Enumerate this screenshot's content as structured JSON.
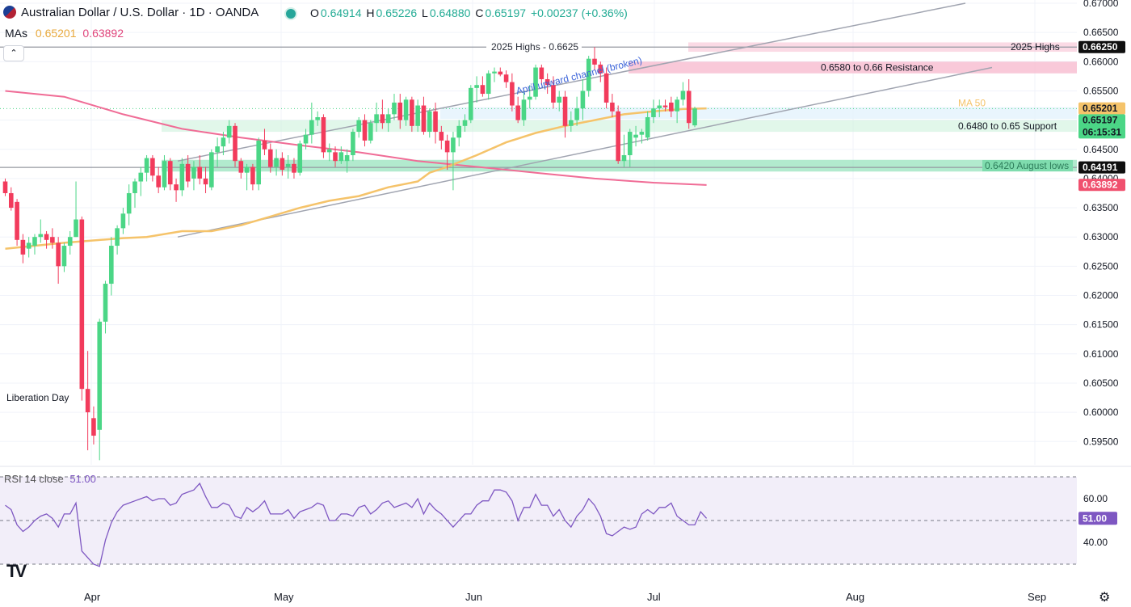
{
  "header": {
    "title": "Australian Dollar / U.S. Dollar · 1D · OANDA",
    "o_label": "O",
    "o_value": "0.64914",
    "h_label": "H",
    "h_value": "0.65226",
    "l_label": "L",
    "l_value": "0.64880",
    "c_label": "C",
    "c_value": "0.65197",
    "change": "+0.00237 (+0.36%)",
    "mas_label": "MAs",
    "ma50_value": "0.65201",
    "ma200_value": "0.63892",
    "collapse_icon": "chevron-up-icon"
  },
  "colors": {
    "up": "#4bd686",
    "down": "#f23b5c",
    "ma50": "#f5c36a",
    "ma200": "#f06c96",
    "rsi": "#7e57c2",
    "resistance_zone": "#f8bbd0",
    "support_zone": "#c8f0d8",
    "august_zone": "#7fdcae",
    "channel": "#a0a4b0"
  },
  "price_axis": {
    "ticks": [
      "0.67000",
      "0.66500",
      "0.66000",
      "0.65500",
      "0.65000",
      "0.64500",
      "0.64000",
      "0.63500",
      "0.63000",
      "0.62500",
      "0.62000",
      "0.61500",
      "0.61000",
      "0.60500",
      "0.60000",
      "0.59500"
    ],
    "tags": {
      "highs_2025": "0.66250",
      "ma50": "0.65201",
      "last": "0.65197",
      "countdown": "06:15:31",
      "august_lows": "0.64191",
      "ma200": "0.63892"
    }
  },
  "annotations": {
    "highs_line": "2025 Highs - 0.6625",
    "highs_right": "2025 Highs",
    "resistance": "0.6580 to 0.66 Resistance",
    "support": "0.6480 to 0.65 Support",
    "channel": "April upward channel (broken)",
    "august_lows": "0.6420 August lows",
    "ma50_label": "MA 50",
    "liberation_day": "Liberation Day"
  },
  "time_axis": {
    "labels": [
      "Apr",
      "May",
      "Jun",
      "Jul",
      "Aug",
      "Sep"
    ]
  },
  "rsi_panel": {
    "label": "RSI 14 close",
    "value": "51.00",
    "ticks": [
      "60.00",
      "40.00"
    ],
    "tag": "51.00"
  },
  "chart_data": {
    "type": "candlestick",
    "title": "Australian Dollar / U.S. Dollar · 1D · OANDA",
    "x_labels": [
      "Apr",
      "May",
      "Jun",
      "Jul",
      "Aug",
      "Sep"
    ],
    "ylim": [
      0.592,
      0.6705
    ],
    "candles": [
      [
        0.6395,
        0.64,
        0.637,
        0.6375
      ],
      [
        0.6375,
        0.6385,
        0.6345,
        0.635
      ],
      [
        0.636,
        0.6365,
        0.6285,
        0.6295
      ],
      [
        0.6295,
        0.6305,
        0.6255,
        0.627
      ],
      [
        0.628,
        0.63,
        0.6265,
        0.629
      ],
      [
        0.6285,
        0.6305,
        0.627,
        0.63
      ],
      [
        0.63,
        0.633,
        0.629,
        0.6305
      ],
      [
        0.6305,
        0.631,
        0.628,
        0.6295
      ],
      [
        0.63,
        0.6315,
        0.628,
        0.629
      ],
      [
        0.629,
        0.63,
        0.622,
        0.625
      ],
      [
        0.625,
        0.629,
        0.624,
        0.6285
      ],
      [
        0.6285,
        0.631,
        0.627,
        0.63
      ],
      [
        0.63,
        0.6395,
        0.63,
        0.633
      ],
      [
        0.633,
        0.6335,
        0.602,
        0.604
      ],
      [
        0.604,
        0.6105,
        0.5935,
        0.6
      ],
      [
        0.599,
        0.601,
        0.5945,
        0.596
      ],
      [
        0.597,
        0.616,
        0.5918,
        0.6155
      ],
      [
        0.6155,
        0.6225,
        0.6135,
        0.622
      ],
      [
        0.622,
        0.63,
        0.62,
        0.6285
      ],
      [
        0.6285,
        0.632,
        0.627,
        0.6315
      ],
      [
        0.6315,
        0.635,
        0.6305,
        0.634
      ],
      [
        0.634,
        0.639,
        0.632,
        0.6375
      ],
      [
        0.6375,
        0.64,
        0.635,
        0.6395
      ],
      [
        0.6395,
        0.642,
        0.637,
        0.641
      ],
      [
        0.641,
        0.644,
        0.6395,
        0.6435
      ],
      [
        0.6435,
        0.644,
        0.6395,
        0.6405
      ],
      [
        0.6405,
        0.642,
        0.6375,
        0.6385
      ],
      [
        0.6385,
        0.644,
        0.638,
        0.643
      ],
      [
        0.643,
        0.6435,
        0.638,
        0.639
      ],
      [
        0.639,
        0.64,
        0.636,
        0.638
      ],
      [
        0.638,
        0.6435,
        0.637,
        0.6425
      ],
      [
        0.6425,
        0.644,
        0.6385,
        0.6395
      ],
      [
        0.64,
        0.643,
        0.638,
        0.642
      ],
      [
        0.642,
        0.644,
        0.639,
        0.64
      ],
      [
        0.64,
        0.642,
        0.6375,
        0.639
      ],
      [
        0.6385,
        0.645,
        0.638,
        0.6445
      ],
      [
        0.6445,
        0.647,
        0.642,
        0.6455
      ],
      [
        0.6455,
        0.648,
        0.644,
        0.647
      ],
      [
        0.647,
        0.65,
        0.646,
        0.649
      ],
      [
        0.649,
        0.6495,
        0.642,
        0.643
      ],
      [
        0.643,
        0.6435,
        0.64,
        0.641
      ],
      [
        0.641,
        0.6425,
        0.638,
        0.642
      ],
      [
        0.642,
        0.6425,
        0.638,
        0.639
      ],
      [
        0.639,
        0.647,
        0.638,
        0.6465
      ],
      [
        0.6465,
        0.6485,
        0.644,
        0.645
      ],
      [
        0.645,
        0.646,
        0.641,
        0.642
      ],
      [
        0.642,
        0.645,
        0.6405,
        0.6435
      ],
      [
        0.6435,
        0.6445,
        0.6405,
        0.6415
      ],
      [
        0.642,
        0.644,
        0.64,
        0.6425
      ],
      [
        0.6425,
        0.6435,
        0.64,
        0.641
      ],
      [
        0.641,
        0.6465,
        0.6405,
        0.646
      ],
      [
        0.646,
        0.6485,
        0.645,
        0.6475
      ],
      [
        0.6475,
        0.653,
        0.646,
        0.65
      ],
      [
        0.65,
        0.6515,
        0.649,
        0.6505
      ],
      [
        0.6505,
        0.651,
        0.6435,
        0.6445
      ],
      [
        0.6445,
        0.646,
        0.643,
        0.645
      ],
      [
        0.6445,
        0.6455,
        0.642,
        0.643
      ],
      [
        0.643,
        0.6455,
        0.6425,
        0.6445
      ],
      [
        0.643,
        0.645,
        0.641,
        0.644
      ],
      [
        0.644,
        0.6485,
        0.643,
        0.648
      ],
      [
        0.648,
        0.6505,
        0.647,
        0.65
      ],
      [
        0.65,
        0.651,
        0.6455,
        0.6465
      ],
      [
        0.6465,
        0.65,
        0.646,
        0.6495
      ],
      [
        0.6495,
        0.653,
        0.648,
        0.651
      ],
      [
        0.651,
        0.6535,
        0.6485,
        0.6495
      ],
      [
        0.6495,
        0.652,
        0.648,
        0.651
      ],
      [
        0.651,
        0.6545,
        0.65,
        0.653
      ],
      [
        0.653,
        0.6545,
        0.6485,
        0.65
      ],
      [
        0.65,
        0.654,
        0.649,
        0.6535
      ],
      [
        0.6535,
        0.654,
        0.648,
        0.649
      ],
      [
        0.649,
        0.6535,
        0.648,
        0.6525
      ],
      [
        0.6525,
        0.654,
        0.6475,
        0.648
      ],
      [
        0.648,
        0.652,
        0.647,
        0.6515
      ],
      [
        0.6515,
        0.653,
        0.646,
        0.648
      ],
      [
        0.648,
        0.649,
        0.645,
        0.6465
      ],
      [
        0.6465,
        0.6475,
        0.6415,
        0.6445
      ],
      [
        0.6445,
        0.648,
        0.638,
        0.647
      ],
      [
        0.647,
        0.65,
        0.6455,
        0.649
      ],
      [
        0.649,
        0.651,
        0.648,
        0.65
      ],
      [
        0.65,
        0.656,
        0.6495,
        0.6555
      ],
      [
        0.6555,
        0.6575,
        0.653,
        0.656
      ],
      [
        0.656,
        0.6575,
        0.654,
        0.6545
      ],
      [
        0.6545,
        0.6585,
        0.6535,
        0.658
      ],
      [
        0.658,
        0.659,
        0.6565,
        0.6583
      ],
      [
        0.6583,
        0.659,
        0.6575,
        0.6578
      ],
      [
        0.6578,
        0.6585,
        0.6555,
        0.6565
      ],
      [
        0.6565,
        0.658,
        0.6515,
        0.6525
      ],
      [
        0.6525,
        0.654,
        0.6495,
        0.65
      ],
      [
        0.65,
        0.655,
        0.649,
        0.6535
      ],
      [
        0.6535,
        0.656,
        0.652,
        0.654
      ],
      [
        0.654,
        0.6595,
        0.6535,
        0.659
      ],
      [
        0.659,
        0.6595,
        0.656,
        0.657
      ],
      [
        0.657,
        0.658,
        0.6545,
        0.656
      ],
      [
        0.656,
        0.6575,
        0.652,
        0.653
      ],
      [
        0.653,
        0.655,
        0.6515,
        0.654
      ],
      [
        0.654,
        0.655,
        0.647,
        0.649
      ],
      [
        0.649,
        0.6515,
        0.648,
        0.65
      ],
      [
        0.65,
        0.654,
        0.649,
        0.652
      ],
      [
        0.652,
        0.657,
        0.65,
        0.655
      ],
      [
        0.655,
        0.661,
        0.654,
        0.6605
      ],
      [
        0.6605,
        0.6625,
        0.6585,
        0.6595
      ],
      [
        0.6595,
        0.66,
        0.6565,
        0.658
      ],
      [
        0.658,
        0.659,
        0.652,
        0.653
      ],
      [
        0.653,
        0.6545,
        0.6505,
        0.6515
      ],
      [
        0.6515,
        0.6525,
        0.6425,
        0.643
      ],
      [
        0.643,
        0.6475,
        0.642,
        0.644
      ],
      [
        0.644,
        0.6485,
        0.642,
        0.648
      ],
      [
        0.647,
        0.649,
        0.6455,
        0.6475
      ],
      [
        0.6475,
        0.6485,
        0.646,
        0.648
      ],
      [
        0.647,
        0.6515,
        0.6465,
        0.6505
      ],
      [
        0.6505,
        0.6535,
        0.6495,
        0.652
      ],
      [
        0.652,
        0.6535,
        0.6505,
        0.6525
      ],
      [
        0.6525,
        0.6535,
        0.6515,
        0.6522
      ],
      [
        0.653,
        0.654,
        0.6505,
        0.6515
      ],
      [
        0.6515,
        0.654,
        0.6495,
        0.6535
      ],
      [
        0.6535,
        0.6565,
        0.6525,
        0.655
      ],
      [
        0.655,
        0.657,
        0.6485,
        0.6495
      ],
      [
        0.6491,
        0.6523,
        0.6488,
        0.652
      ]
    ],
    "ma50": [
      [
        0,
        0.628
      ],
      [
        10,
        0.629
      ],
      [
        20,
        0.6298
      ],
      [
        24,
        0.63
      ],
      [
        30,
        0.631
      ],
      [
        35,
        0.631
      ],
      [
        40,
        0.632
      ],
      [
        45,
        0.6335
      ],
      [
        50,
        0.635
      ],
      [
        55,
        0.6362
      ],
      [
        60,
        0.637
      ],
      [
        65,
        0.6385
      ],
      [
        70,
        0.6395
      ],
      [
        72,
        0.641
      ],
      [
        75,
        0.642
      ],
      [
        80,
        0.644
      ],
      [
        85,
        0.6462
      ],
      [
        90,
        0.6478
      ],
      [
        95,
        0.649
      ],
      [
        100,
        0.65
      ],
      [
        105,
        0.651
      ],
      [
        110,
        0.6515
      ],
      [
        115,
        0.6519
      ],
      [
        119,
        0.652
      ]
    ],
    "ma200": [
      [
        0,
        0.655
      ],
      [
        10,
        0.654
      ],
      [
        20,
        0.651
      ],
      [
        30,
        0.6485
      ],
      [
        40,
        0.647
      ],
      [
        50,
        0.6457
      ],
      [
        60,
        0.6445
      ],
      [
        70,
        0.643
      ],
      [
        80,
        0.642
      ],
      [
        90,
        0.641
      ],
      [
        100,
        0.64
      ],
      [
        110,
        0.6393
      ],
      [
        119,
        0.6389
      ]
    ],
    "rsi": {
      "range": [
        0,
        100
      ],
      "levels": [
        70,
        50,
        30
      ],
      "values": [
        57,
        55,
        48,
        45,
        47,
        50,
        52,
        53,
        51,
        47,
        53,
        53,
        58,
        36,
        33,
        30,
        29,
        41,
        49,
        54,
        57,
        58,
        59,
        60,
        61,
        59,
        60,
        60,
        57,
        58,
        62,
        63,
        64,
        67,
        61,
        56,
        56,
        58,
        57,
        52,
        51,
        56,
        54,
        56,
        59,
        53,
        53,
        53,
        55,
        51,
        54,
        55,
        56,
        58,
        57,
        50,
        50,
        53,
        53,
        52,
        56,
        57,
        53,
        55,
        58,
        59,
        56,
        57,
        58,
        56,
        60,
        53,
        58,
        55,
        53,
        50,
        47,
        50,
        53,
        53,
        57,
        59,
        59,
        64,
        64,
        63,
        59,
        50,
        56,
        56,
        62,
        57,
        57,
        52,
        55,
        50,
        47,
        52,
        55,
        60,
        57,
        52,
        44,
        43,
        45,
        47,
        46,
        47,
        53,
        55,
        53,
        56,
        56,
        58,
        52,
        50,
        48,
        48,
        54,
        51
      ],
      "current": 51.0
    }
  }
}
